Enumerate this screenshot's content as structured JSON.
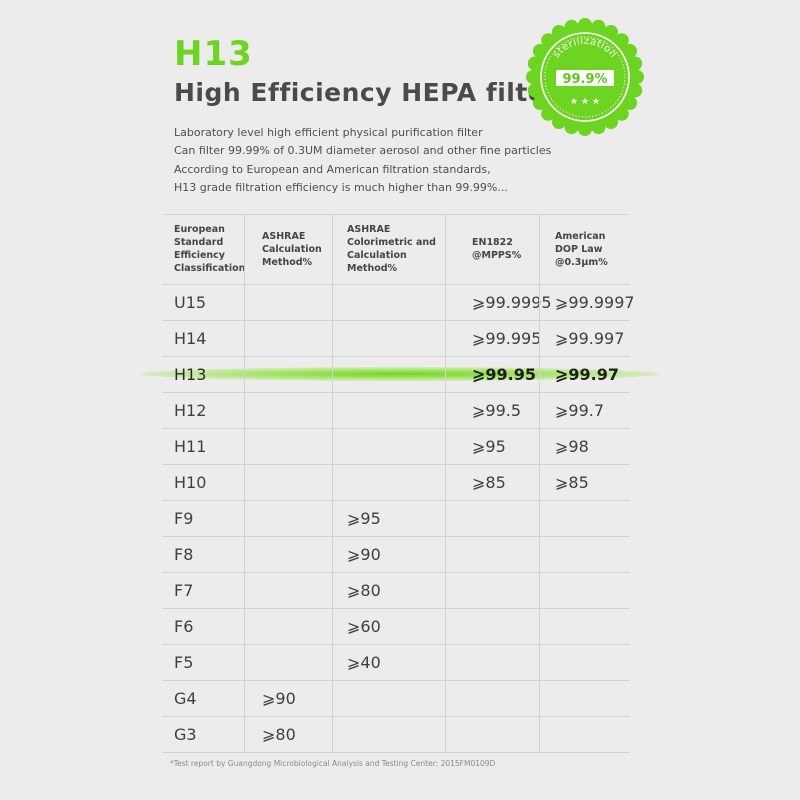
{
  "heading": {
    "grade": "H13",
    "title": "High Efficiency HEPA filter"
  },
  "description": [
    "Laboratory level high efficient physical purification filter",
    "Can filter 99.99% of 0.3UM diameter aerosol and other fine particles",
    "According to European and American filtration standards,",
    "H13 grade filtration efficiency is much higher than 99.99%..."
  ],
  "seal": {
    "arc_text": "sterilization",
    "value": "99.9%",
    "color": "#6dd421"
  },
  "table": {
    "headers": [
      "European Standard Efficiency Classification",
      "ASHRAE Calculation Method%",
      "ASHRAE Colorimetric and Calculation Method%",
      "EN1822 @MPPS%",
      "American DOP Law @0.3μm%"
    ],
    "rows": [
      [
        "U15",
        "",
        "",
        "⩾99.9995",
        "⩾99.9997"
      ],
      [
        "H14",
        "",
        "",
        "⩾99.995",
        "⩾99.997"
      ],
      [
        "H13",
        "",
        "",
        "⩾99.95",
        "⩾99.97"
      ],
      [
        "H12",
        "",
        "",
        "⩾99.5",
        "⩾99.7"
      ],
      [
        "H11",
        "",
        "",
        "⩾95",
        "⩾98"
      ],
      [
        "H10",
        "",
        "",
        "⩾85",
        "⩾85"
      ],
      [
        "F9",
        "",
        "⩾95",
        "",
        ""
      ],
      [
        "F8",
        "",
        "⩾90",
        "",
        ""
      ],
      [
        "F7",
        "",
        "⩾80",
        "",
        ""
      ],
      [
        "F6",
        "",
        "⩾60",
        "",
        ""
      ],
      [
        "F5",
        "",
        "⩾40",
        "",
        ""
      ],
      [
        "G4",
        "⩾90",
        "",
        "",
        ""
      ],
      [
        "G3",
        "⩾80",
        "",
        "",
        ""
      ]
    ],
    "highlight_row": "H13",
    "highlight_color": "#6dd421"
  },
  "footnote": "*Test report by Guangdong Microbiological Analysis and Testing Center:  2015FM0109D"
}
